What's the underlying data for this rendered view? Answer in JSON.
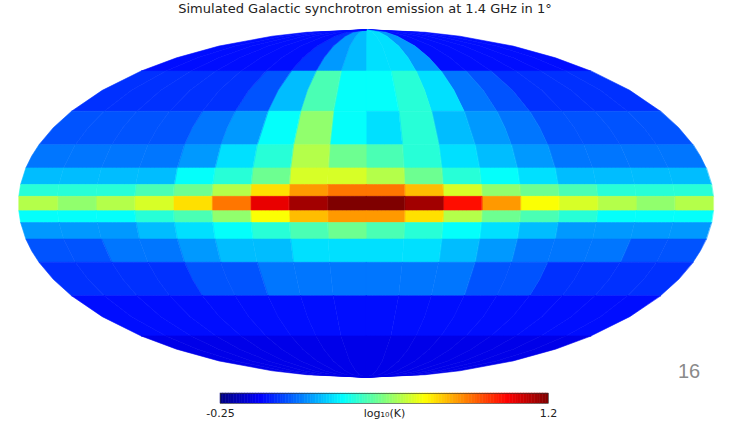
{
  "chart_data": {
    "type": "heatmap",
    "title": "Simulated Galactic synchrotron emission at 1.4 GHz in 1°",
    "lon_edges": [
      -180,
      -160,
      -140,
      -120,
      -100,
      -80,
      -60,
      -40,
      -20,
      0,
      20,
      40,
      60,
      80,
      100,
      120,
      140,
      160,
      180
    ],
    "lat_edges": [
      90,
      60,
      40,
      25,
      15,
      8,
      3,
      -3,
      -8,
      -15,
      -25,
      -40,
      -60,
      -90
    ],
    "cells": [
      [
        -0.05,
        -0.05,
        -0.05,
        -0.05,
        -0.05,
        -0.05,
        0.15,
        0.25,
        0.25,
        0.2,
        0.15,
        0.0,
        -0.05,
        -0.05,
        -0.05,
        -0.05,
        -0.05,
        -0.05
      ],
      [
        0.0,
        0.0,
        0.0,
        0.0,
        0.05,
        0.1,
        0.25,
        0.35,
        0.3,
        0.3,
        0.4,
        0.2,
        0.05,
        0.0,
        0.0,
        0.0,
        0.0,
        0.0
      ],
      [
        0.05,
        0.05,
        0.05,
        0.05,
        0.1,
        0.15,
        0.2,
        0.35,
        0.25,
        0.3,
        0.5,
        0.3,
        0.15,
        0.1,
        0.05,
        0.05,
        0.05,
        0.05
      ],
      [
        0.1,
        0.1,
        0.1,
        0.1,
        0.15,
        0.2,
        0.25,
        0.35,
        0.4,
        0.45,
        0.55,
        0.35,
        0.25,
        0.15,
        0.1,
        0.1,
        0.1,
        0.1
      ],
      [
        0.2,
        0.2,
        0.2,
        0.2,
        0.25,
        0.3,
        0.35,
        0.45,
        0.55,
        0.6,
        0.6,
        0.45,
        0.35,
        0.3,
        0.2,
        0.2,
        0.2,
        0.2
      ],
      [
        0.35,
        0.35,
        0.35,
        0.4,
        0.45,
        0.5,
        0.6,
        0.75,
        0.85,
        0.85,
        0.8,
        0.7,
        0.55,
        0.45,
        0.4,
        0.35,
        0.35,
        0.35
      ],
      [
        0.55,
        0.5,
        0.55,
        0.6,
        0.65,
        0.8,
        1.0,
        1.15,
        1.2,
        1.2,
        1.15,
        1.05,
        0.85,
        0.7,
        0.6,
        0.55,
        0.5,
        0.55
      ],
      [
        0.3,
        0.3,
        0.3,
        0.35,
        0.4,
        0.45,
        0.55,
        0.7,
        0.8,
        0.8,
        0.75,
        0.65,
        0.5,
        0.4,
        0.35,
        0.3,
        0.3,
        0.3
      ],
      [
        0.15,
        0.15,
        0.15,
        0.15,
        0.2,
        0.25,
        0.3,
        0.35,
        0.4,
        0.45,
        0.4,
        0.35,
        0.3,
        0.25,
        0.2,
        0.15,
        0.15,
        0.15
      ],
      [
        0.05,
        0.05,
        0.1,
        0.1,
        0.1,
        0.15,
        0.2,
        0.25,
        0.25,
        0.25,
        0.25,
        0.2,
        0.2,
        0.15,
        0.1,
        0.1,
        0.05,
        0.05
      ],
      [
        0.0,
        0.0,
        0.0,
        0.0,
        0.05,
        0.05,
        0.1,
        0.1,
        0.1,
        0.1,
        0.1,
        0.1,
        0.05,
        0.05,
        0.0,
        0.0,
        0.0,
        0.0
      ],
      [
        -0.05,
        -0.05,
        -0.05,
        -0.05,
        -0.05,
        -0.05,
        -0.05,
        -0.05,
        -0.05,
        -0.05,
        -0.05,
        -0.05,
        -0.05,
        -0.05,
        -0.05,
        -0.05,
        -0.05,
        -0.05
      ],
      [
        -0.1,
        -0.1,
        -0.1,
        -0.1,
        -0.1,
        -0.1,
        -0.1,
        -0.1,
        -0.1,
        -0.1,
        -0.1,
        -0.1,
        -0.1,
        -0.1,
        -0.1,
        -0.1,
        -0.1,
        -0.1
      ]
    ],
    "colorbar": {
      "label": "log₁₀(K)",
      "range": [
        -0.25,
        1.2
      ],
      "ticks": [
        -0.25,
        1.2
      ]
    }
  },
  "page_number": 16
}
